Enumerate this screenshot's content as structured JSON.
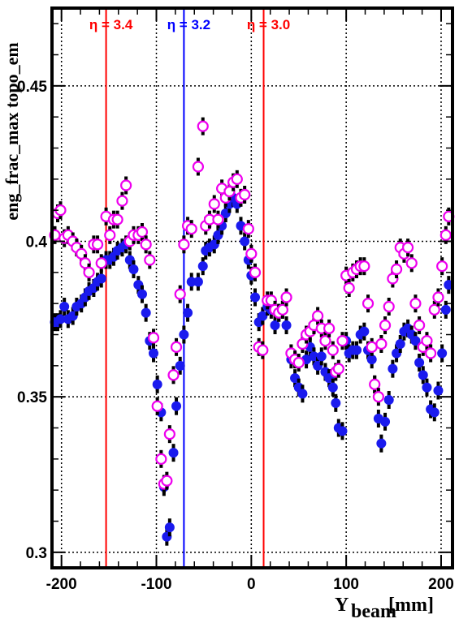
{
  "chart_data": {
    "type": "scatter",
    "xlabel_main": "Y",
    "xlabel_sub": "beam",
    "xlabel_unit": "[mm]",
    "ylabel": "eng_frac_max    topo_em",
    "xlim": [
      -210,
      212
    ],
    "ylim": [
      0.295,
      0.475
    ],
    "x_ticks": [
      -200,
      -100,
      0,
      100,
      200
    ],
    "x_tick_labels": [
      "-200",
      "-100",
      "0",
      "100",
      "200"
    ],
    "y_ticks": [
      0.3,
      0.35,
      0.4,
      0.45
    ],
    "y_tick_labels": [
      "0.3",
      "0.35",
      "0.4",
      "0.45"
    ],
    "grid": true,
    "vlines": [
      {
        "x": -153,
        "label": "η = 3.4",
        "color": "#ff0000"
      },
      {
        "x": -71,
        "label": "η = 3.2",
        "color": "#0000ff"
      },
      {
        "x": 13,
        "label": "η = 3.0",
        "color": "#ff0000"
      }
    ],
    "series": [
      {
        "marker": "filled-circle",
        "color": "#1a1aee",
        "points": [
          [
            -207,
            0.374
          ],
          [
            -204,
            0.374
          ],
          [
            -201,
            0.375
          ],
          [
            -197,
            0.379
          ],
          [
            -193,
            0.375
          ],
          [
            -188,
            0.376
          ],
          [
            -184,
            0.379
          ],
          [
            -179,
            0.38
          ],
          [
            -175,
            0.382
          ],
          [
            -171,
            0.384
          ],
          [
            -166,
            0.385
          ],
          [
            -162,
            0.387
          ],
          [
            -158,
            0.388
          ],
          [
            -153,
            0.394
          ],
          [
            -149,
            0.394
          ],
          [
            -145,
            0.395
          ],
          [
            -141,
            0.397
          ],
          [
            -136,
            0.398
          ],
          [
            -132,
            0.399
          ],
          [
            -128,
            0.394
          ],
          [
            -124,
            0.391
          ],
          [
            -119,
            0.386
          ],
          [
            -115,
            0.383
          ],
          [
            -111,
            0.377
          ],
          [
            -107,
            0.368
          ],
          [
            -103,
            0.364
          ],
          [
            -99,
            0.354
          ],
          [
            -95,
            0.345
          ],
          [
            -92,
            0.321
          ],
          [
            -89,
            0.305
          ],
          [
            -86,
            0.308
          ],
          [
            -82,
            0.332
          ],
          [
            -79,
            0.347
          ],
          [
            -75,
            0.36
          ],
          [
            -71,
            0.37
          ],
          [
            -67,
            0.377
          ],
          [
            -63,
            0.387
          ],
          [
            -56,
            0.387
          ],
          [
            -51,
            0.392
          ],
          [
            -48,
            0.397
          ],
          [
            -44,
            0.398
          ],
          [
            -39,
            0.399
          ],
          [
            -35,
            0.402
          ],
          [
            -31,
            0.405
          ],
          [
            -27,
            0.409
          ],
          [
            -23,
            0.412
          ],
          [
            -19,
            0.414
          ],
          [
            -15,
            0.412
          ],
          [
            -11,
            0.405
          ],
          [
            -7,
            0.4
          ],
          [
            -3,
            0.394
          ],
          [
            0,
            0.389
          ],
          [
            4,
            0.382
          ],
          [
            8,
            0.374
          ],
          [
            12,
            0.376
          ],
          [
            17,
            0.379
          ],
          [
            21,
            0.378
          ],
          [
            25,
            0.373
          ],
          [
            29,
            0.377
          ],
          [
            33,
            0.378
          ],
          [
            37,
            0.373
          ],
          [
            42,
            0.362
          ],
          [
            46,
            0.356
          ],
          [
            50,
            0.353
          ],
          [
            54,
            0.351
          ],
          [
            58,
            0.362
          ],
          [
            62,
            0.366
          ],
          [
            66,
            0.363
          ],
          [
            70,
            0.36
          ],
          [
            74,
            0.363
          ],
          [
            78,
            0.358
          ],
          [
            82,
            0.356
          ],
          [
            86,
            0.353
          ],
          [
            89,
            0.348
          ],
          [
            92,
            0.34
          ],
          [
            96,
            0.339
          ],
          [
            100,
            0.368
          ],
          [
            103,
            0.364
          ],
          [
            107,
            0.365
          ],
          [
            111,
            0.365
          ],
          [
            115,
            0.37
          ],
          [
            119,
            0.371
          ],
          [
            123,
            0.365
          ],
          [
            127,
            0.362
          ],
          [
            130,
            0.354
          ],
          [
            134,
            0.343
          ],
          [
            137,
            0.335
          ],
          [
            141,
            0.342
          ],
          [
            145,
            0.349
          ],
          [
            149,
            0.359
          ],
          [
            153,
            0.364
          ],
          [
            157,
            0.367
          ],
          [
            161,
            0.371
          ],
          [
            165,
            0.372
          ],
          [
            169,
            0.37
          ],
          [
            173,
            0.368
          ],
          [
            177,
            0.361
          ],
          [
            181,
            0.357
          ],
          [
            185,
            0.353
          ],
          [
            189,
            0.346
          ],
          [
            193,
            0.345
          ],
          [
            197,
            0.352
          ],
          [
            201,
            0.364
          ],
          [
            205,
            0.378
          ],
          [
            208,
            0.386
          ]
        ]
      },
      {
        "marker": "open-circle",
        "color": "#ee00ee",
        "points": [
          [
            -207,
            0.402
          ],
          [
            -204,
            0.409
          ],
          [
            -201,
            0.41
          ],
          [
            -197,
            0.401
          ],
          [
            -193,
            0.402
          ],
          [
            -188,
            0.4
          ],
          [
            -184,
            0.398
          ],
          [
            -179,
            0.396
          ],
          [
            -175,
            0.393
          ],
          [
            -171,
            0.39
          ],
          [
            -166,
            0.399
          ],
          [
            -162,
            0.399
          ],
          [
            -158,
            0.393
          ],
          [
            -153,
            0.408
          ],
          [
            -149,
            0.402
          ],
          [
            -145,
            0.407
          ],
          [
            -141,
            0.407
          ],
          [
            -136,
            0.413
          ],
          [
            -132,
            0.418
          ],
          [
            -128,
            0.4
          ],
          [
            -124,
            0.402
          ],
          [
            -119,
            0.402
          ],
          [
            -115,
            0.403
          ],
          [
            -111,
            0.399
          ],
          [
            -107,
            0.394
          ],
          [
            -103,
            0.369
          ],
          [
            -99,
            0.347
          ],
          [
            -95,
            0.33
          ],
          [
            -92,
            0.322
          ],
          [
            -89,
            0.323
          ],
          [
            -86,
            0.338
          ],
          [
            -82,
            0.357
          ],
          [
            -79,
            0.366
          ],
          [
            -75,
            0.383
          ],
          [
            -71,
            0.399
          ],
          [
            -67,
            0.405
          ],
          [
            -63,
            0.404
          ],
          [
            -56,
            0.424
          ],
          [
            -51,
            0.437
          ],
          [
            -48,
            0.405
          ],
          [
            -44,
            0.407
          ],
          [
            -39,
            0.412
          ],
          [
            -35,
            0.407
          ],
          [
            -31,
            0.417
          ],
          [
            -27,
            0.414
          ],
          [
            -23,
            0.416
          ],
          [
            -19,
            0.419
          ],
          [
            -15,
            0.42
          ],
          [
            -11,
            0.414
          ],
          [
            -7,
            0.415
          ],
          [
            -3,
            0.404
          ],
          [
            0,
            0.396
          ],
          [
            4,
            0.39
          ],
          [
            8,
            0.366
          ],
          [
            12,
            0.365
          ],
          [
            17,
            0.381
          ],
          [
            21,
            0.381
          ],
          [
            25,
            0.378
          ],
          [
            29,
            0.377
          ],
          [
            33,
            0.378
          ],
          [
            37,
            0.382
          ],
          [
            42,
            0.364
          ],
          [
            46,
            0.362
          ],
          [
            50,
            0.361
          ],
          [
            54,
            0.367
          ],
          [
            58,
            0.37
          ],
          [
            62,
            0.371
          ],
          [
            66,
            0.373
          ],
          [
            70,
            0.376
          ],
          [
            74,
            0.372
          ],
          [
            78,
            0.368
          ],
          [
            82,
            0.372
          ],
          [
            86,
            0.365
          ],
          [
            89,
            0.358
          ],
          [
            92,
            0.359
          ],
          [
            96,
            0.368
          ],
          [
            100,
            0.389
          ],
          [
            103,
            0.385
          ],
          [
            107,
            0.39
          ],
          [
            111,
            0.391
          ],
          [
            115,
            0.392
          ],
          [
            119,
            0.392
          ],
          [
            123,
            0.38
          ],
          [
            127,
            0.366
          ],
          [
            130,
            0.354
          ],
          [
            134,
            0.35
          ],
          [
            137,
            0.367
          ],
          [
            141,
            0.373
          ],
          [
            145,
            0.379
          ],
          [
            149,
            0.388
          ],
          [
            153,
            0.391
          ],
          [
            157,
            0.398
          ],
          [
            161,
            0.396
          ],
          [
            165,
            0.398
          ],
          [
            169,
            0.393
          ],
          [
            173,
            0.38
          ],
          [
            177,
            0.373
          ],
          [
            181,
            0.366
          ],
          [
            185,
            0.368
          ],
          [
            189,
            0.364
          ],
          [
            193,
            0.378
          ],
          [
            197,
            0.382
          ],
          [
            201,
            0.392
          ],
          [
            205,
            0.402
          ],
          [
            208,
            0.408
          ]
        ]
      }
    ]
  }
}
